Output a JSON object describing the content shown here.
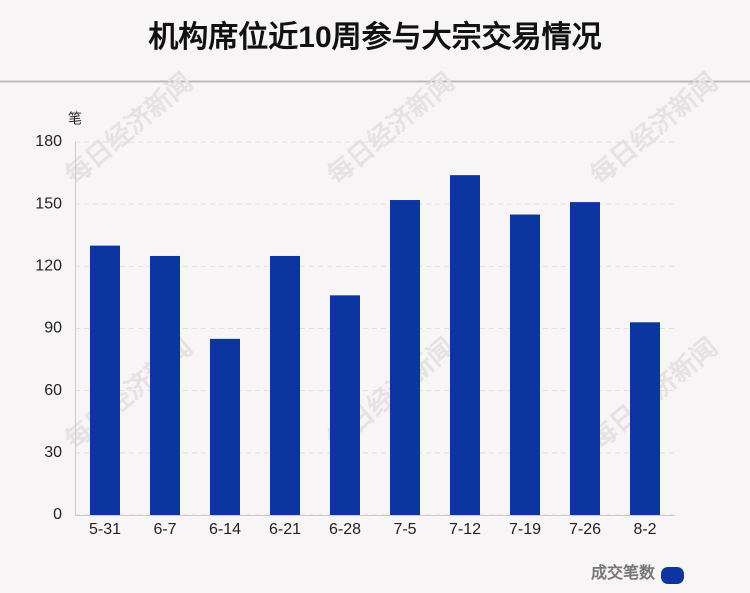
{
  "chart_data": {
    "type": "bar",
    "title": "机构席位近10周参与大宗交易情况",
    "y_unit": "笔",
    "categories": [
      "5-31",
      "6-7",
      "6-14",
      "6-21",
      "6-28",
      "7-5",
      "7-12",
      "7-19",
      "7-26",
      "8-2"
    ],
    "series": [
      {
        "name": "成交笔数",
        "color": "#0c359f",
        "values": [
          130,
          125,
          85,
          125,
          106,
          152,
          164,
          145,
          151,
          93
        ]
      }
    ],
    "ylim": [
      0,
      180
    ],
    "yticks": [
      0,
      30,
      60,
      90,
      120,
      150,
      180
    ],
    "grid": true,
    "watermark": "每日经济新闻"
  }
}
